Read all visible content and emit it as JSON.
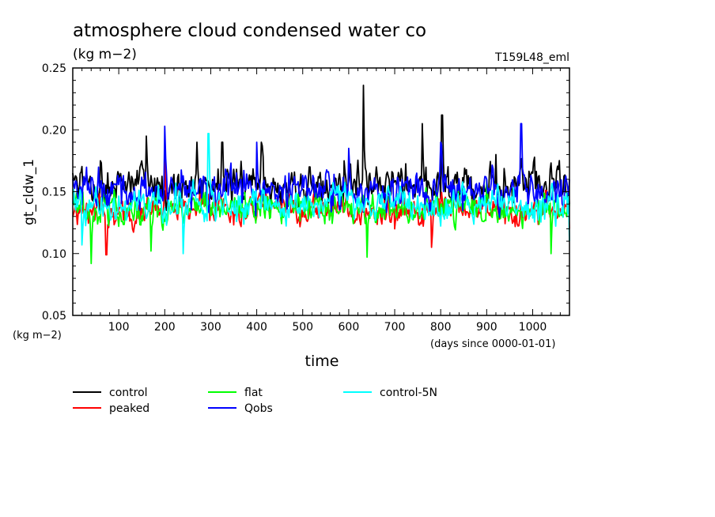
{
  "chart_data": {
    "type": "line",
    "title": "atmosphere cloud condensed water co",
    "units": "(kg m−2)",
    "run_label": "T159L48_eml",
    "ylabel": "gt_cldw_1",
    "y_units": "(kg m−2)",
    "xlabel": "time",
    "x_units": "(days since 0000-01-01)",
    "xlim": [
      0,
      1080
    ],
    "ylim": [
      0.05,
      0.25
    ],
    "x_ticks": [
      100,
      200,
      300,
      400,
      500,
      600,
      700,
      800,
      900,
      1000
    ],
    "y_ticks": [
      "0.05",
      "0.10",
      "0.15",
      "0.20",
      "0.25"
    ],
    "grid": false,
    "legend_position": "bottom-left",
    "series": [
      {
        "name": "control",
        "color": "#000000",
        "mean": 0.155,
        "amplitude": 0.02,
        "samples": [
          [
            0,
            0.165
          ],
          [
            60,
            0.175
          ],
          [
            160,
            0.195
          ],
          [
            270,
            0.19
          ],
          [
            325,
            0.19
          ],
          [
            410,
            0.19
          ],
          [
            515,
            0.17
          ],
          [
            590,
            0.175
          ],
          [
            632,
            0.236
          ],
          [
            660,
            0.17
          ],
          [
            760,
            0.205
          ],
          [
            803,
            0.212
          ],
          [
            920,
            0.18
          ],
          [
            1000,
            0.165
          ],
          [
            1080,
            0.14
          ]
        ]
      },
      {
        "name": "peaked",
        "color": "#ff0000",
        "mean": 0.135,
        "amplitude": 0.015,
        "samples": [
          [
            0,
            0.13
          ],
          [
            73,
            0.099
          ],
          [
            200,
            0.175
          ],
          [
            400,
            0.13
          ],
          [
            600,
            0.13
          ],
          [
            700,
            0.12
          ],
          [
            780,
            0.105
          ],
          [
            1000,
            0.13
          ],
          [
            1080,
            0.12
          ]
        ]
      },
      {
        "name": "flat",
        "color": "#00ff00",
        "mean": 0.136,
        "amplitude": 0.016,
        "samples": [
          [
            0,
            0.15
          ],
          [
            40,
            0.092
          ],
          [
            170,
            0.102
          ],
          [
            640,
            0.097
          ],
          [
            900,
            0.16
          ],
          [
            1040,
            0.1
          ],
          [
            1080,
            0.14
          ]
        ]
      },
      {
        "name": "Qobs",
        "color": "#0000ff",
        "mean": 0.152,
        "amplitude": 0.02,
        "samples": [
          [
            0,
            0.16
          ],
          [
            200,
            0.203
          ],
          [
            400,
            0.19
          ],
          [
            600,
            0.185
          ],
          [
            800,
            0.19
          ],
          [
            975,
            0.205
          ],
          [
            1080,
            0.16
          ]
        ]
      },
      {
        "name": "control-5N",
        "color": "#00ffff",
        "mean": 0.14,
        "amplitude": 0.017,
        "samples": [
          [
            0,
            0.14
          ],
          [
            20,
            0.107
          ],
          [
            240,
            0.1
          ],
          [
            295,
            0.197
          ],
          [
            600,
            0.15
          ],
          [
            900,
            0.14
          ],
          [
            1080,
            0.11
          ]
        ]
      }
    ]
  }
}
